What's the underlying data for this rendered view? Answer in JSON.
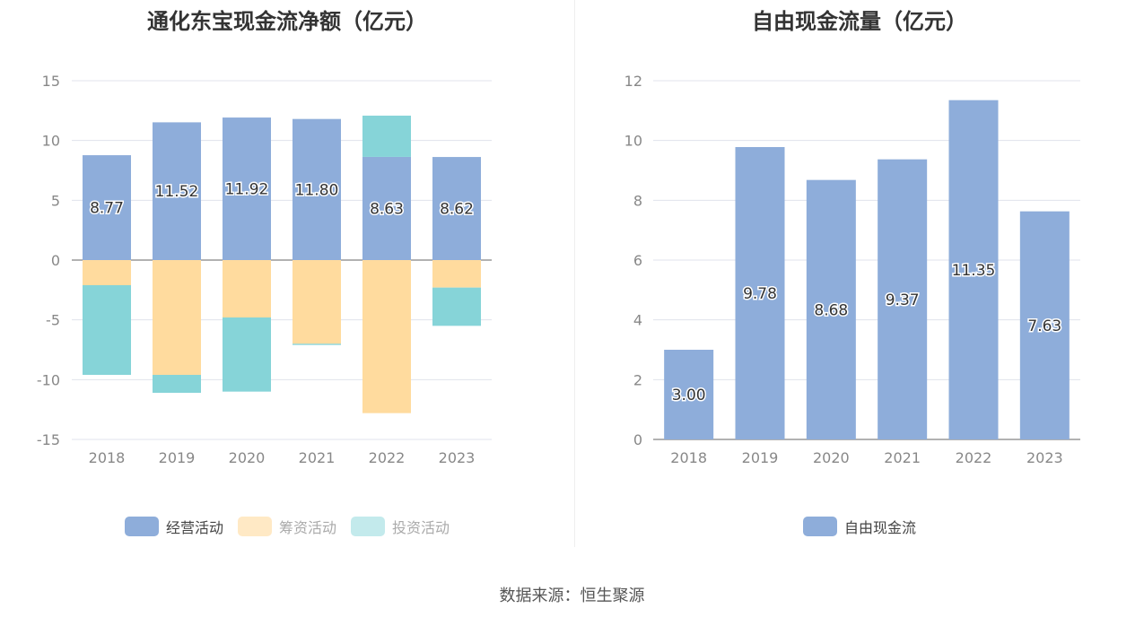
{
  "source_text": "数据来源：恒生聚源",
  "colors": {
    "operating": "#8eadda",
    "financing": "#ffdb9e",
    "investing": "#86d4d8",
    "free": "#8eadda"
  },
  "chart_data": [
    {
      "type": "bar",
      "stacked": true,
      "title": "通化东宝现金流净额（亿元）",
      "categories": [
        "2018",
        "2019",
        "2020",
        "2021",
        "2022",
        "2023"
      ],
      "ylim": [
        -15,
        15
      ],
      "yticks": [
        15,
        10,
        5,
        0,
        -5,
        -10,
        -15
      ],
      "grid": true,
      "legend_position": "bottom",
      "series": [
        {
          "name": "经营活动",
          "values": [
            8.77,
            11.52,
            11.92,
            11.8,
            8.63,
            8.62
          ],
          "labels": [
            "8.77",
            "11.52",
            "11.92",
            "11.80",
            "8.63",
            "8.62"
          ]
        },
        {
          "name": "筹资活动",
          "values": [
            -2.1,
            -9.6,
            -4.8,
            -7.0,
            -12.8,
            -2.3
          ]
        },
        {
          "name": "投资活动",
          "values": [
            -7.5,
            -1.5,
            -6.2,
            -0.1,
            3.45,
            -3.2
          ]
        }
      ]
    },
    {
      "type": "bar",
      "title": "自由现金流量（亿元）",
      "categories": [
        "2018",
        "2019",
        "2020",
        "2021",
        "2022",
        "2023"
      ],
      "ylim": [
        0,
        12
      ],
      "yticks": [
        12,
        10,
        8,
        6,
        4,
        2,
        0
      ],
      "grid": true,
      "legend_position": "bottom",
      "series": [
        {
          "name": "自由现金流",
          "values": [
            3.0,
            9.78,
            8.68,
            9.37,
            11.35,
            7.63
          ],
          "labels": [
            "3.00",
            "9.78",
            "8.68",
            "9.37",
            "11.35",
            "7.63"
          ]
        }
      ]
    }
  ]
}
